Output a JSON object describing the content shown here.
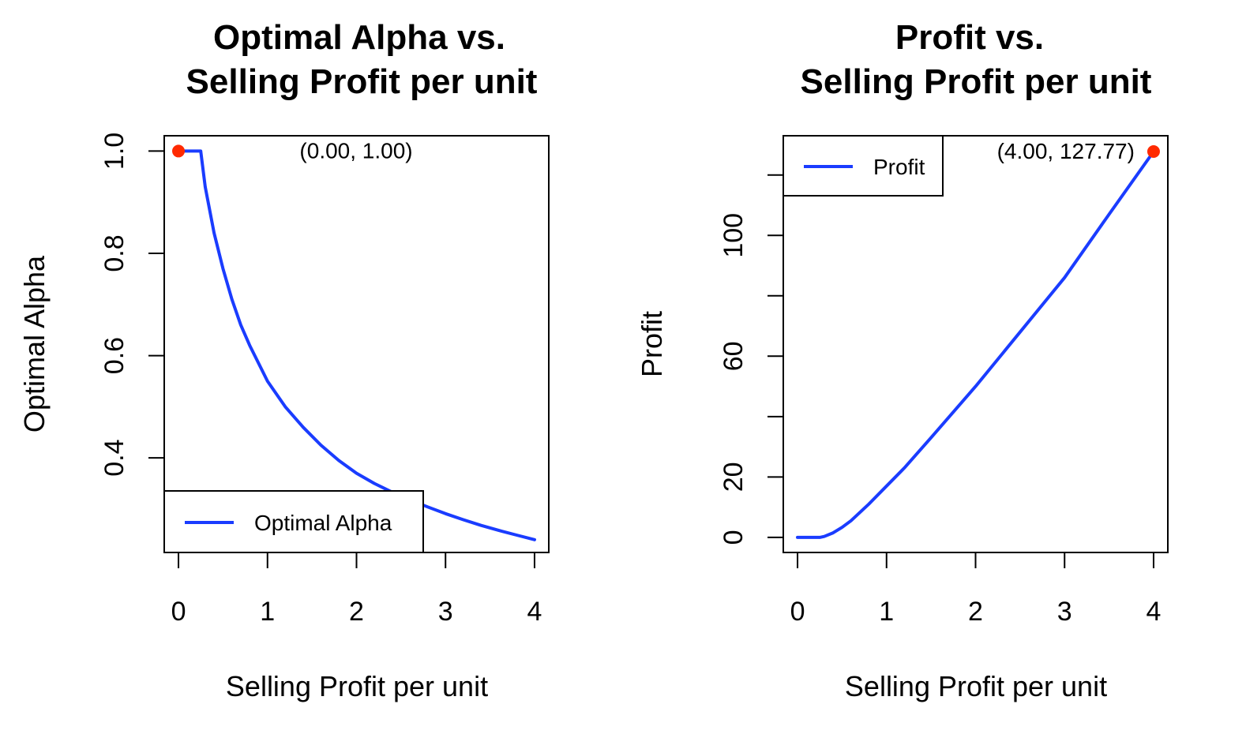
{
  "colors": {
    "series": "#1a3cff",
    "marker": "#ff2a00",
    "axis": "#000000",
    "background": "#ffffff"
  },
  "chart_data": [
    {
      "type": "line",
      "title_lines": [
        "Optimal Alpha vs.",
        "Selling Profit per unit"
      ],
      "xlabel": "Selling Profit per unit",
      "ylabel": "Optimal Alpha",
      "xlim": [
        -0.16,
        4.16
      ],
      "ylim": [
        0.215,
        1.03
      ],
      "xticks": [
        0,
        1,
        2,
        3,
        4
      ],
      "xtick_labels": [
        "0",
        "1",
        "2",
        "3",
        "4"
      ],
      "yticks": [
        0.4,
        0.6,
        0.8,
        1.0
      ],
      "ytick_labels": [
        "0.4",
        "0.6",
        "0.8",
        "1.0"
      ],
      "legend": {
        "position": "bottom-left",
        "entries": [
          "Optimal Alpha"
        ]
      },
      "grid": false,
      "series": [
        {
          "name": "Optimal Alpha",
          "x": [
            0,
            0.1,
            0.2,
            0.25,
            0.3,
            0.4,
            0.5,
            0.6,
            0.7,
            0.8,
            1.0,
            1.2,
            1.4,
            1.6,
            1.8,
            2.0,
            2.2,
            2.4,
            2.6,
            2.8,
            3.0,
            3.2,
            3.4,
            3.6,
            3.8,
            4.0
          ],
          "y": [
            1.0,
            1.0,
            1.0,
            1.0,
            0.93,
            0.84,
            0.77,
            0.71,
            0.66,
            0.62,
            0.55,
            0.5,
            0.46,
            0.425,
            0.395,
            0.37,
            0.35,
            0.333,
            0.318,
            0.304,
            0.291,
            0.279,
            0.268,
            0.258,
            0.249,
            0.24
          ]
        }
      ],
      "highlight_point": {
        "x": 0.0,
        "y": 1.0,
        "label": "(0.00, 1.00)"
      }
    },
    {
      "type": "line",
      "title_lines": [
        "Profit vs.",
        "Selling Profit per unit"
      ],
      "xlabel": "Selling Profit per unit",
      "ylabel": "Profit",
      "xlim": [
        -0.16,
        4.16
      ],
      "ylim": [
        -5,
        133
      ],
      "xticks": [
        0,
        1,
        2,
        3,
        4
      ],
      "xtick_labels": [
        "0",
        "1",
        "2",
        "3",
        "4"
      ],
      "yticks": [
        0,
        20,
        40,
        60,
        80,
        100,
        120
      ],
      "ytick_labels": [
        "0",
        "20",
        "",
        "60",
        "",
        "100",
        ""
      ],
      "legend": {
        "position": "top-left",
        "entries": [
          "Profit"
        ]
      },
      "grid": false,
      "series": [
        {
          "name": "Profit",
          "x": [
            0,
            0.1,
            0.2,
            0.25,
            0.3,
            0.4,
            0.5,
            0.6,
            0.8,
            1.0,
            1.2,
            1.5,
            2.0,
            2.5,
            3.0,
            3.5,
            4.0
          ],
          "y": [
            0,
            0,
            0,
            0,
            0.3,
            1.5,
            3.3,
            5.5,
            11,
            17,
            23,
            33,
            50,
            68,
            86,
            107,
            127.77
          ]
        }
      ],
      "highlight_point": {
        "x": 4.0,
        "y": 127.77,
        "label": "(4.00, 127.77)"
      }
    }
  ]
}
